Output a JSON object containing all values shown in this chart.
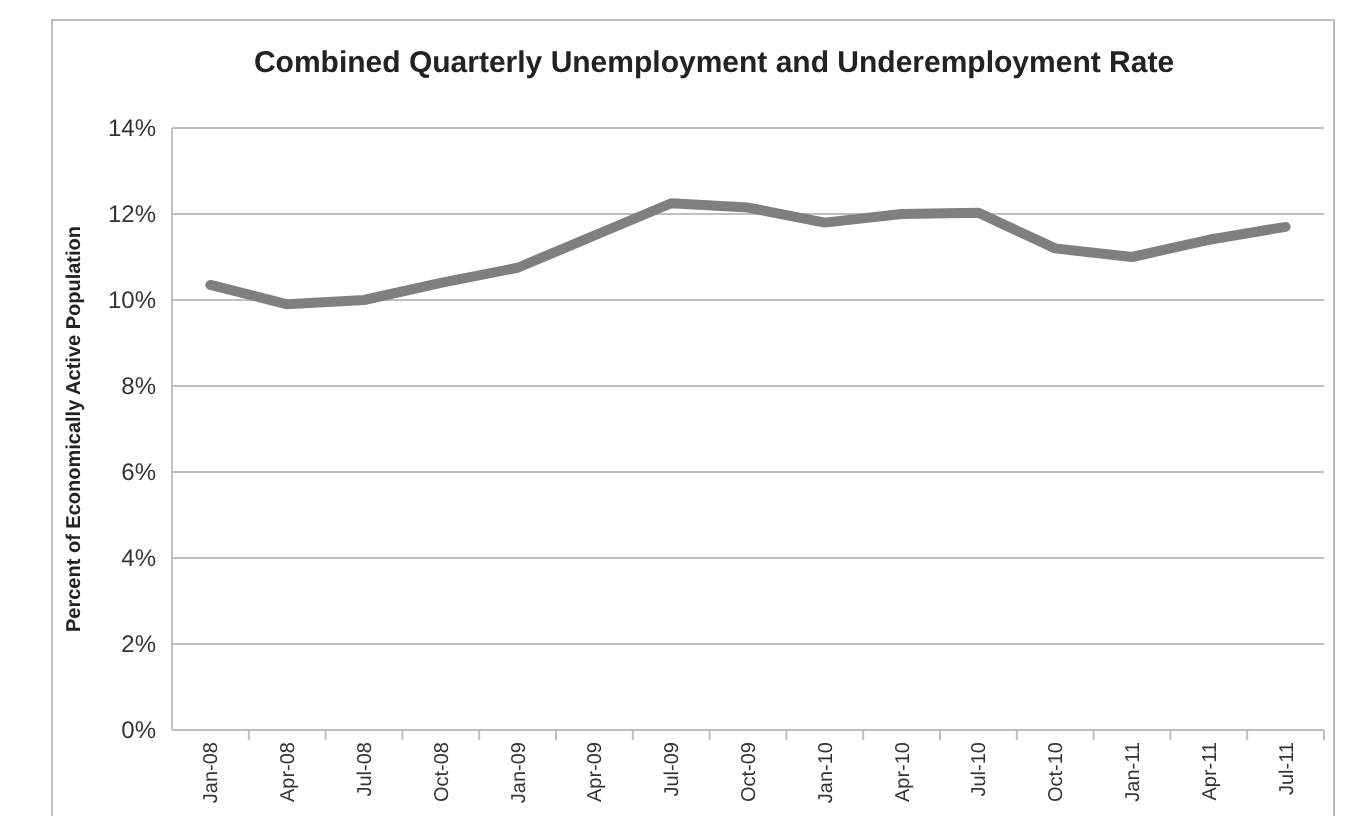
{
  "chart_data": {
    "type": "line",
    "title": "Combined Quarterly Unemployment and Underemployment Rate",
    "ylabel": "Percent of Economically Active Population",
    "categories": [
      "Jan-08",
      "Apr-08",
      "Jul-08",
      "Oct-08",
      "Jan-09",
      "Apr-09",
      "Jul-09",
      "Oct-09",
      "Jan-10",
      "Apr-10",
      "Jul-10",
      "Oct-10",
      "Jan-11",
      "Apr-11",
      "Jul-11"
    ],
    "series": [
      {
        "color": "#7f7f7f",
        "values": [
          10.35,
          9.9,
          10.0,
          10.4,
          10.75,
          11.5,
          12.25,
          12.15,
          11.8,
          12.0,
          12.03,
          11.2,
          11.0,
          11.4,
          11.7
        ]
      }
    ],
    "ylim": [
      0,
      14
    ],
    "yticks": [
      {
        "value": 0,
        "label": "0%"
      },
      {
        "value": 2,
        "label": "2%"
      },
      {
        "value": 4,
        "label": "4%"
      },
      {
        "value": 6,
        "label": "6%"
      },
      {
        "value": 8,
        "label": "8%"
      },
      {
        "value": 10,
        "label": "10%"
      },
      {
        "value": 12,
        "label": "12%"
      },
      {
        "value": 14,
        "label": "14%"
      }
    ],
    "grid": "y",
    "marker": "none",
    "line_style": "solid"
  }
}
